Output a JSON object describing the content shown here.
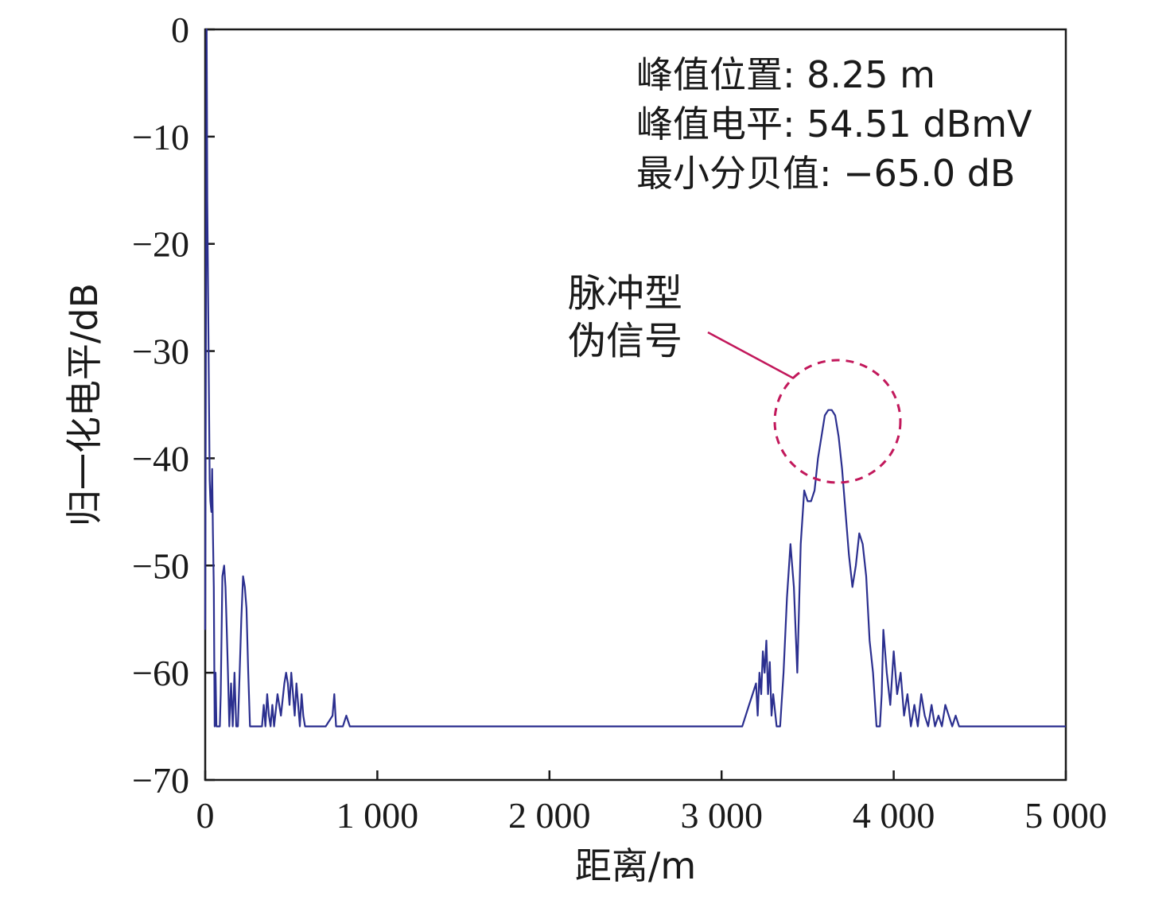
{
  "chart_data": {
    "type": "line",
    "xlabel": "距离/m",
    "ylabel": "归一化电平/dB",
    "xlim": [
      0,
      5000
    ],
    "ylim": [
      -70,
      0
    ],
    "x_ticks": [
      0,
      1000,
      2000,
      3000,
      4000,
      5000
    ],
    "x_tick_labels": [
      "0",
      "1 000",
      "2 000",
      "3 000",
      "4 000",
      "5 000"
    ],
    "y_ticks": [
      0,
      -10,
      -20,
      -30,
      -40,
      -50,
      -60,
      -70
    ],
    "y_tick_labels": [
      "0",
      "−10",
      "−20",
      "−30",
      "−40",
      "−50",
      "−60",
      "−70"
    ],
    "floor": -65,
    "grid": false,
    "line_color": "#2b2f8f",
    "info_lines": [
      "峰值位置: 8.25 m",
      "峰值电平: 54.51 dBmV",
      "最小分贝值: −65.0 dB"
    ],
    "annotation": {
      "lines": [
        "脉冲型",
        "伪信号"
      ],
      "x": 3650,
      "y": -36,
      "circle_color": "#c2185b",
      "arrow_color": "#c2185b"
    },
    "series": [
      {
        "values_x": [
          0,
          8.25,
          12,
          18,
          22,
          26,
          30,
          36,
          40,
          45,
          50,
          55,
          60,
          65,
          70,
          78,
          85,
          90,
          100,
          110,
          118,
          125,
          132,
          140,
          150,
          160,
          170,
          180,
          190,
          200,
          210,
          220,
          230,
          240,
          250,
          260,
          270,
          280,
          290,
          300,
          310,
          320,
          330,
          340,
          350,
          360,
          370,
          380,
          390,
          400,
          420,
          440,
          460,
          470,
          480,
          490,
          500,
          510,
          520,
          530,
          540,
          550,
          560,
          570,
          580,
          600,
          700,
          740,
          750,
          760,
          800,
          820,
          840,
          860,
          1000,
          2000,
          3000,
          3120,
          3160,
          3180,
          3200,
          3210,
          3220,
          3230,
          3240,
          3250,
          3260,
          3270,
          3280,
          3290,
          3300,
          3320,
          3340,
          3360,
          3380,
          3400,
          3420,
          3440,
          3460,
          3480,
          3500,
          3520,
          3540,
          3560,
          3580,
          3600,
          3620,
          3640,
          3660,
          3680,
          3700,
          3720,
          3740,
          3760,
          3780,
          3800,
          3820,
          3840,
          3860,
          3880,
          3900,
          3920,
          3930,
          3940,
          3960,
          3980,
          4000,
          4020,
          4040,
          4060,
          4080,
          4100,
          4120,
          4140,
          4160,
          4180,
          4200,
          4220,
          4240,
          4260,
          4280,
          4300,
          4320,
          4340,
          4360,
          4380,
          4400,
          4420,
          4500,
          5000
        ],
        "values_y": [
          -56,
          0,
          -16,
          -27,
          -35,
          -42,
          -44,
          -45,
          -41,
          -47,
          -52,
          -65,
          -60,
          -65,
          -65,
          -65,
          -65,
          -62,
          -51,
          -50,
          -52,
          -56,
          -60,
          -65,
          -61,
          -65,
          -60,
          -65,
          -65,
          -60,
          -55,
          -51,
          -52,
          -54,
          -60,
          -65,
          -65,
          -65,
          -65,
          -65,
          -65,
          -65,
          -65,
          -63,
          -65,
          -62,
          -64,
          -65,
          -63,
          -65,
          -62,
          -64,
          -61,
          -60,
          -61,
          -63,
          -60,
          -62,
          -64,
          -61,
          -63,
          -65,
          -62,
          -64,
          -65,
          -65,
          -65,
          -64,
          -62,
          -65,
          -65,
          -64,
          -65,
          -65,
          -65,
          -65,
          -65,
          -65,
          -63,
          -62,
          -61,
          -64,
          -60,
          -62,
          -58,
          -60,
          -57,
          -62,
          -59,
          -64,
          -62,
          -65,
          -65,
          -60,
          -53,
          -48,
          -52,
          -60,
          -48,
          -43,
          -44,
          -44,
          -43,
          -40,
          -38,
          -36,
          -35.5,
          -35.5,
          -36,
          -38,
          -41,
          -45,
          -49,
          -52,
          -50,
          -47,
          -48,
          -51,
          -57,
          -60,
          -65,
          -65,
          -62,
          -56,
          -60,
          -63,
          -58,
          -62,
          -60,
          -64,
          -62,
          -65,
          -63,
          -65,
          -62,
          -64,
          -65,
          -63,
          -65,
          -64,
          -65,
          -63,
          -64,
          -65,
          -64,
          -65,
          -65,
          -65,
          -65,
          -65
        ]
      }
    ]
  }
}
